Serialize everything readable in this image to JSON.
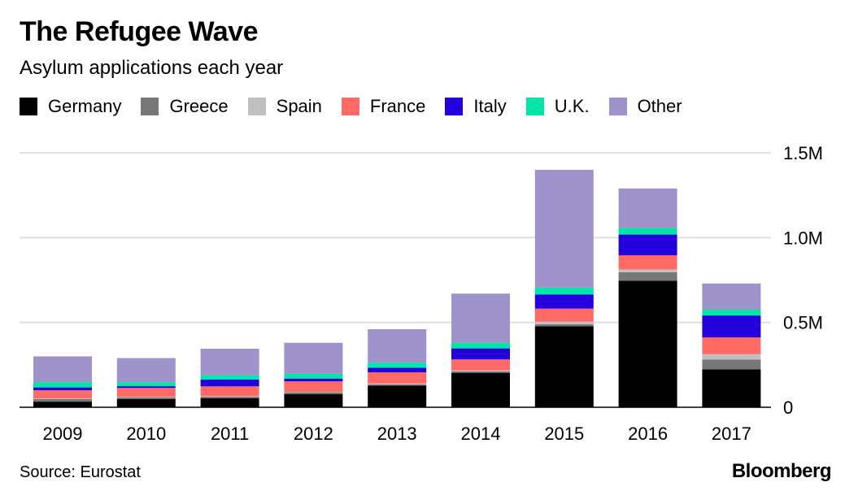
{
  "title": "The Refugee Wave",
  "subtitle": "Asylum applications each year",
  "source": "Source: Eurostat",
  "brand": "Bloomberg",
  "chart_data": {
    "type": "bar",
    "stacked": true,
    "categories": [
      "2009",
      "2010",
      "2011",
      "2012",
      "2013",
      "2014",
      "2015",
      "2016",
      "2017"
    ],
    "series": [
      {
        "name": "Germany",
        "color": "#000000",
        "values": [
          0.033,
          0.048,
          0.053,
          0.078,
          0.127,
          0.203,
          0.477,
          0.745,
          0.223
        ]
      },
      {
        "name": "Greece",
        "color": "#777777",
        "values": [
          0.016,
          0.01,
          0.009,
          0.01,
          0.008,
          0.009,
          0.013,
          0.051,
          0.059
        ]
      },
      {
        "name": "Spain",
        "color": "#c0c0c0",
        "values": [
          0.003,
          0.003,
          0.004,
          0.003,
          0.005,
          0.006,
          0.015,
          0.016,
          0.031
        ]
      },
      {
        "name": "France",
        "color": "#ff6a66",
        "values": [
          0.048,
          0.053,
          0.057,
          0.061,
          0.066,
          0.064,
          0.076,
          0.084,
          0.099
        ]
      },
      {
        "name": "Italy",
        "color": "#2400dd",
        "values": [
          0.017,
          0.01,
          0.04,
          0.017,
          0.027,
          0.065,
          0.084,
          0.122,
          0.129
        ]
      },
      {
        "name": "U.K.",
        "color": "#00e6a8",
        "values": [
          0.031,
          0.024,
          0.026,
          0.028,
          0.03,
          0.033,
          0.04,
          0.039,
          0.034
        ]
      },
      {
        "name": "Other",
        "color": "#a093cc",
        "values": [
          0.152,
          0.142,
          0.156,
          0.183,
          0.197,
          0.29,
          0.695,
          0.233,
          0.155
        ]
      }
    ],
    "ylim": [
      0,
      1.5
    ],
    "yticks": [
      {
        "value": 0,
        "label": "0"
      },
      {
        "value": 0.5,
        "label": "0.5M"
      },
      {
        "value": 1.0,
        "label": "1.0M"
      },
      {
        "value": 1.5,
        "label": "1.5M"
      }
    ],
    "yaxis_side": "right",
    "grid": true,
    "legend_position": "top-left"
  }
}
